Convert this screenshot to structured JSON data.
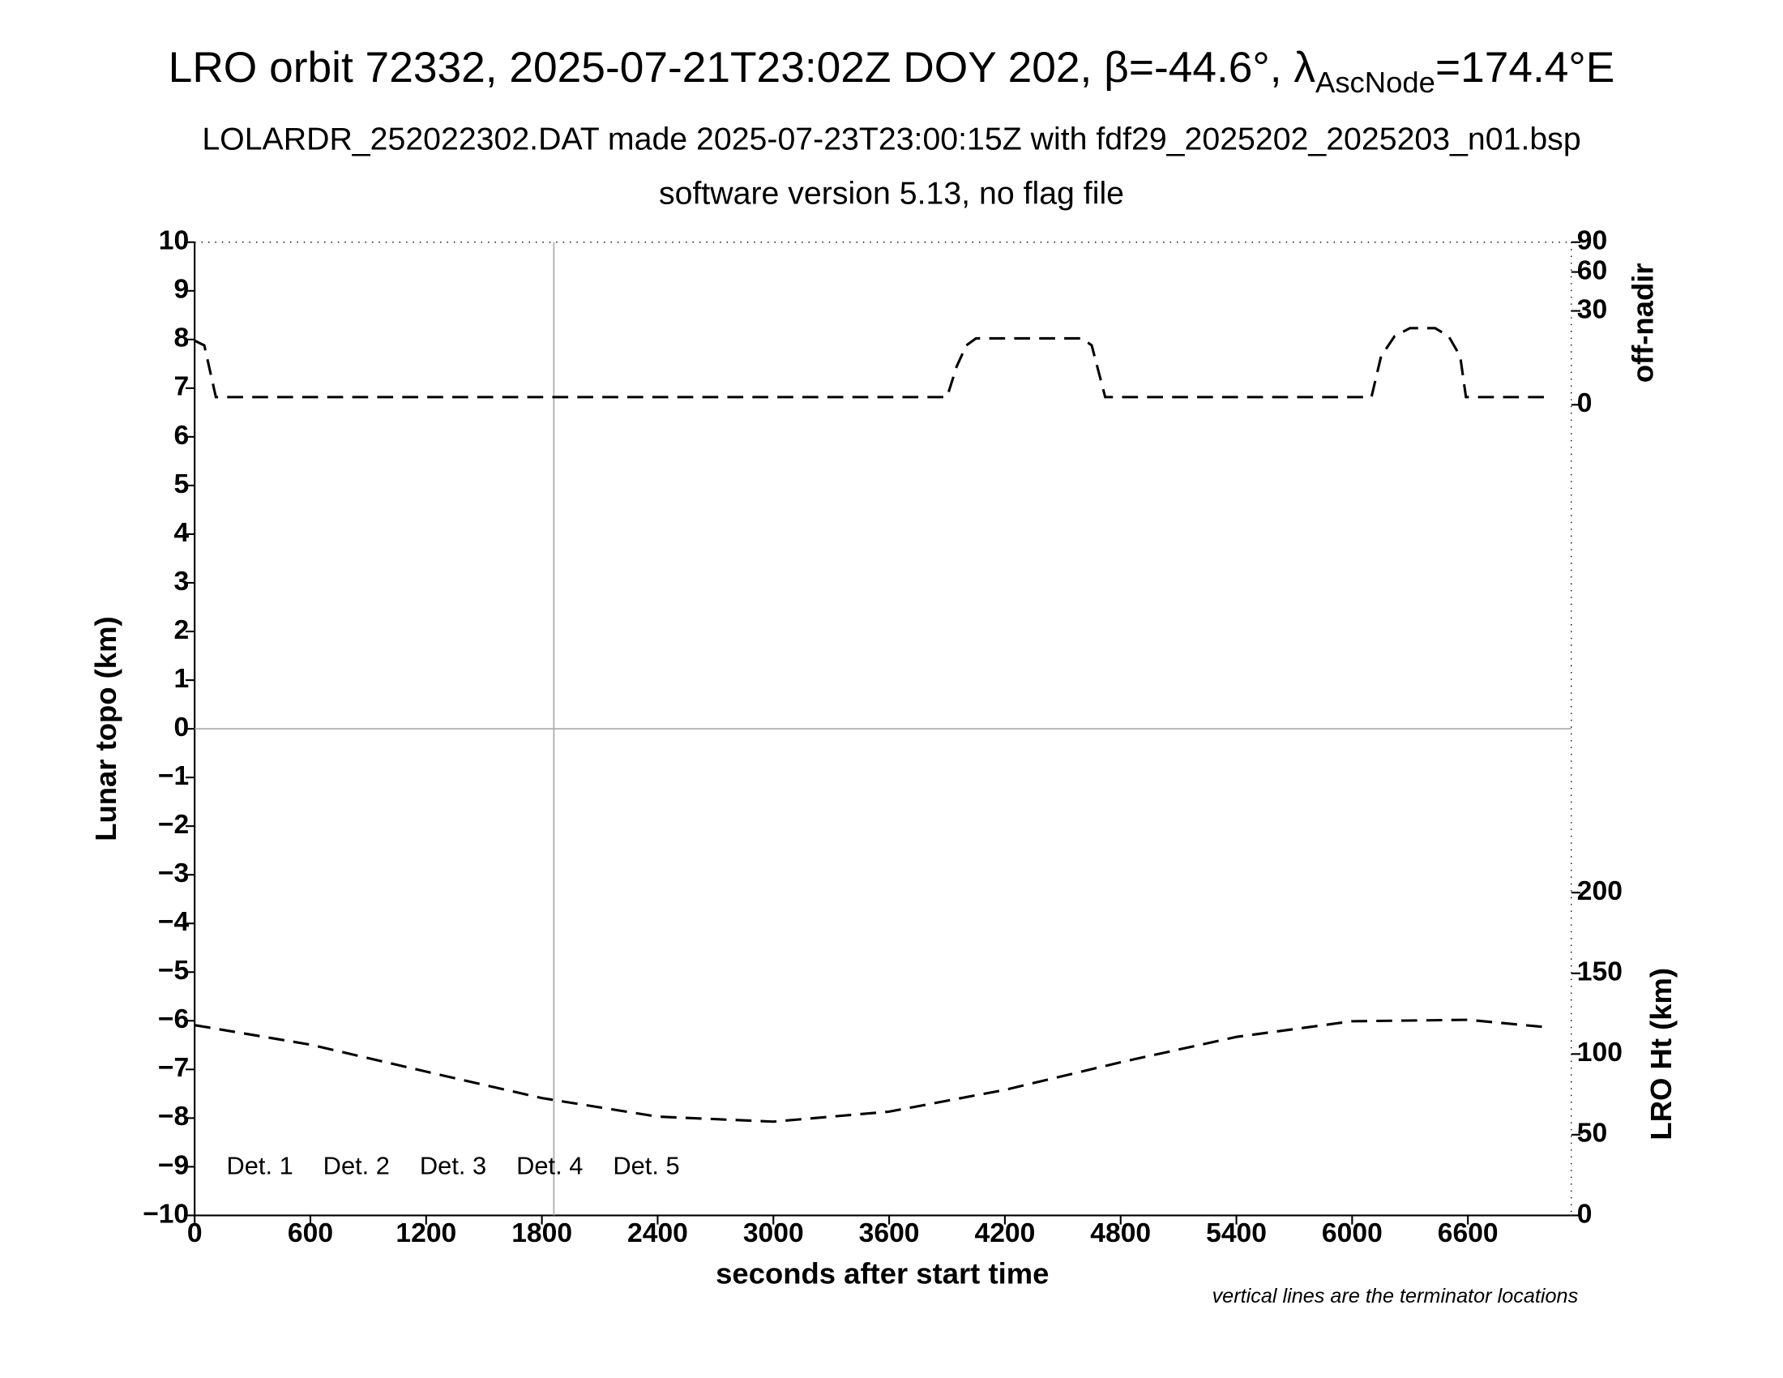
{
  "chart_data": {
    "type": "line",
    "title": {
      "main": "LRO orbit 72332, 2025-07-21T23:02Z DOY 202, β=-44.6°, λ",
      "sub": "AscNode",
      "end": "=174.4°E"
    },
    "subtitle": "LOLARDR_252022302.DAT made 2025-07-23T23:00:15Z with fdf29_2025202_2025203_n01.bsp",
    "subtitle2": "software version 5.13, no flag file",
    "xlabel": "seconds after start time",
    "ylabel": "Lunar topo (km)",
    "y2label": "LRO Ht (km)",
    "y3label": "off-nadir",
    "annotation": "vertical lines are the terminator locations",
    "xlim": [
      0,
      7136
    ],
    "xticks": [
      0,
      600,
      1200,
      1800,
      2400,
      3000,
      3600,
      4200,
      4800,
      5400,
      6000,
      6600
    ],
    "ylim": [
      -10,
      10
    ],
    "yticks": [
      {
        "value": -10,
        "label": "−10"
      },
      {
        "value": -9,
        "label": "−9"
      },
      {
        "value": -8,
        "label": "−8"
      },
      {
        "value": -7,
        "label": "−7"
      },
      {
        "value": -6,
        "label": "−6"
      },
      {
        "value": -5,
        "label": "−5"
      },
      {
        "value": -4,
        "label": "−4"
      },
      {
        "value": -3,
        "label": "−3"
      },
      {
        "value": -2,
        "label": "−2"
      },
      {
        "value": -1,
        "label": "−1"
      },
      0,
      1,
      2,
      3,
      4,
      5,
      6,
      7,
      8,
      9,
      10
    ],
    "y2lim": [
      0,
      603
    ],
    "y2ticks": [
      0,
      50,
      100,
      150,
      200
    ],
    "y3lim": [
      0,
      90
    ],
    "y3scale": "sqrt",
    "y3ticks": [
      0,
      30,
      60,
      90
    ],
    "zero_line": 0,
    "terminators": [
      1862
    ],
    "legend": [
      {
        "name": "Det. 1",
        "color": "#000000"
      },
      {
        "name": "Det. 2",
        "color": "#0000ff"
      },
      {
        "name": "Det. 3",
        "color": "#00ff00"
      },
      {
        "name": "Det. 4",
        "color": "#ffa500"
      },
      {
        "name": "Det. 5",
        "color": "#ff0000"
      }
    ],
    "series": [
      {
        "name": "off-nadir",
        "axis": "y3",
        "color": "#000000",
        "x": [
          0,
          50,
          110,
          3900,
          3950,
          4000,
          4050,
          4600,
          4650,
          4720,
          6100,
          6150,
          6220,
          6300,
          6430,
          6500,
          6560,
          6590,
          7000
        ],
        "values": [
          14,
          12,
          0.2,
          0.2,
          5,
          12,
          15,
          15,
          12,
          0.2,
          0.2,
          8,
          16,
          20,
          20,
          16,
          8,
          0.2,
          0.2
        ]
      },
      {
        "name": "LRO Ht",
        "axis": "y2",
        "color": "#000000",
        "x": [
          0,
          600,
          1200,
          1800,
          2400,
          3000,
          3600,
          4200,
          4800,
          5400,
          6000,
          6600,
          7000
        ],
        "values": [
          117.9,
          105.8,
          89.1,
          72.7,
          61.2,
          58.1,
          64.3,
          77.8,
          94.9,
          110.6,
          120.3,
          121.2,
          116.7
        ]
      }
    ]
  }
}
